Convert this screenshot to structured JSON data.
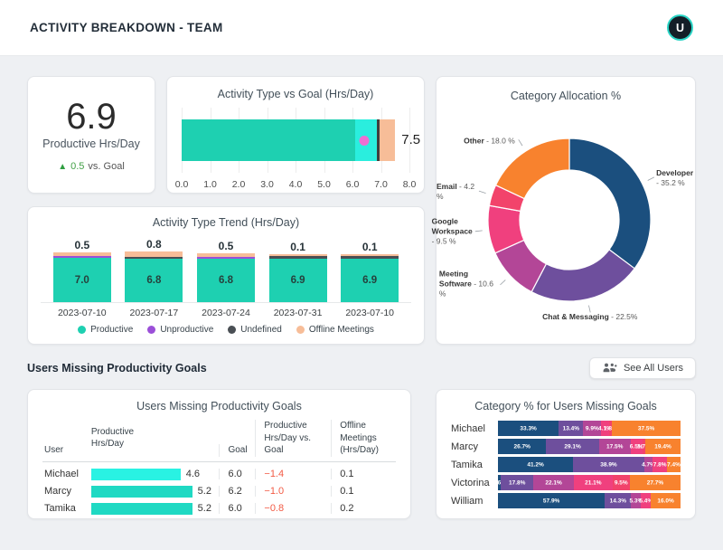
{
  "header": {
    "title": "ACTIVITY BREAKDOWN - TEAM",
    "avatar_initial": "U"
  },
  "kpi": {
    "value": "6.9",
    "label": "Productive Hrs/Day",
    "delta_icon": "up-triangle",
    "delta_value": "0.5",
    "delta_suffix": "vs. Goal"
  },
  "goal_chart": {
    "title": "Activity Type vs Goal (Hrs/Day)",
    "axis_max": 8,
    "ticks": [
      "0.0",
      "1.0",
      "2.0",
      "3.0",
      "4.0",
      "5.0",
      "6.0",
      "7.0",
      "8.0"
    ],
    "segments": [
      {
        "name": "productive",
        "from": 0,
        "to": 6.1,
        "color": "#1ed0b1"
      },
      {
        "name": "productive-extra",
        "from": 6.1,
        "to": 6.9,
        "color": "#2aeede"
      },
      {
        "name": "offline-meetings",
        "from": 6.9,
        "to": 7.5,
        "color": "#f7bd98"
      }
    ],
    "marker_value": 6.9,
    "marker_color": "#3f3f3f",
    "dot_value": 6.4,
    "dot_color": "#ee6fd2",
    "end_label": "7.5"
  },
  "donut": {
    "title": "Category Allocation %",
    "slices": [
      {
        "name": "Developer",
        "value": 35.2,
        "pct_label": "35.2 %",
        "color": "#1b4f7e"
      },
      {
        "name": "Chat & Messaging",
        "value": 22.5,
        "pct_label": "22.5%",
        "color": "#6e4f9d"
      },
      {
        "name": "Meeting Software",
        "value": 10.6,
        "pct_label": "10.6 %",
        "color": "#b34697"
      },
      {
        "name": "Google Workspace",
        "value": 9.5,
        "pct_label": "9.5 %",
        "color": "#f0407e"
      },
      {
        "name": "Email",
        "value": 4.2,
        "pct_label": "4.2 %",
        "color": "#f2436b"
      },
      {
        "name": "Other",
        "value": 18.0,
        "pct_label": "18.0 %",
        "color": "#f8822e"
      }
    ]
  },
  "trend": {
    "title": "Activity Type Trend (Hrs/Day)",
    "palette": {
      "productive": "#1ed0b1",
      "unproductive": "#9b4fd8",
      "undefined": "#4a4f54",
      "offline_meetings": "#f7bd98"
    },
    "bars": [
      {
        "date": "2023-07-10",
        "top_label": "0.5",
        "segments": [
          {
            "type": "productive",
            "value": 7.0,
            "label": "7.0"
          },
          {
            "type": "unproductive",
            "value": 0.1
          },
          {
            "type": "offline_meetings",
            "value": 0.5
          }
        ]
      },
      {
        "date": "2023-07-17",
        "top_label": "0.8",
        "segments": [
          {
            "type": "productive",
            "value": 6.8,
            "label": "6.8"
          },
          {
            "type": "undefined",
            "value": 0.1
          },
          {
            "type": "offline_meetings",
            "value": 0.8
          }
        ]
      },
      {
        "date": "2023-07-24",
        "top_label": "0.5",
        "segments": [
          {
            "type": "productive",
            "value": 6.8,
            "label": "6.8"
          },
          {
            "type": "unproductive",
            "value": 0.1
          },
          {
            "type": "offline_meetings",
            "value": 0.5
          }
        ]
      },
      {
        "date": "2023-07-31",
        "top_label": "0.1",
        "segments": [
          {
            "type": "productive",
            "value": 6.9,
            "label": "6.9"
          },
          {
            "type": "undefined",
            "value": 0.1
          },
          {
            "type": "offline_meetings",
            "value": 0.1
          }
        ]
      },
      {
        "date": "2023-07-10",
        "top_label": "0.1",
        "segments": [
          {
            "type": "productive",
            "value": 6.9,
            "label": "6.9"
          },
          {
            "type": "undefined",
            "value": 0.1
          },
          {
            "type": "offline_meetings",
            "value": 0.1
          }
        ]
      }
    ],
    "legend": [
      {
        "label": "Productive",
        "key": "productive"
      },
      {
        "label": "Unproductive",
        "key": "unproductive"
      },
      {
        "label": "Undefined",
        "key": "undefined"
      },
      {
        "label": "Offline Meetings",
        "key": "offline_meetings"
      }
    ]
  },
  "section": {
    "title": "Users Missing Productivity Goals",
    "button_label": "See All Users"
  },
  "table": {
    "title": "Users Missing Productivity Goals",
    "headers": {
      "user": "User",
      "prod1": "Productive",
      "prod2": "Hrs/Day",
      "goal": "Goal",
      "vs1": "Productive",
      "vs2": "Hrs/Day vs. Goal",
      "off1": "Offline Meetings",
      "off2": "(Hrs/Day)"
    },
    "rows": [
      {
        "user": "Michael",
        "hours": 4.6,
        "hours_label": "4.6",
        "bar_color": "#29f2e3",
        "goal": "6.0",
        "vs_goal": "−1.4",
        "offline": "0.1"
      },
      {
        "user": "Marcy",
        "hours": 5.2,
        "hours_label": "5.2",
        "bar_color": "#1fd9c3",
        "goal": "6.2",
        "vs_goal": "−1.0",
        "offline": "0.1"
      },
      {
        "user": "Tamika",
        "hours": 5.2,
        "hours_label": "5.2",
        "bar_color": "#1fd9c3",
        "goal": "6.0",
        "vs_goal": "−0.8",
        "offline": "0.2"
      }
    ]
  },
  "category_chart": {
    "title": "Category % for Users Missing Goals",
    "palette": {
      "developer": "#1b4f7e",
      "chat": "#6e4f9d",
      "meeting": "#b34697",
      "google": "#f0407e",
      "email": "#f2436b",
      "other": "#f8822e"
    },
    "rows": [
      {
        "user": "Michael",
        "segments": [
          {
            "key": "developer",
            "pct": 33.3,
            "label": "33.3%"
          },
          {
            "key": "chat",
            "pct": 13.4,
            "label": "13.4%"
          },
          {
            "key": "meeting",
            "pct": 9.9,
            "label": "9.9%"
          },
          {
            "key": "google",
            "pct": 4.1,
            "label": "4.1%"
          },
          {
            "key": "email",
            "pct": 1.8,
            "label": "1.8%"
          },
          {
            "key": "other",
            "pct": 37.5,
            "label": "37.5%"
          }
        ]
      },
      {
        "user": "Marcy",
        "segments": [
          {
            "key": "developer",
            "pct": 26.7,
            "label": "26.7%"
          },
          {
            "key": "chat",
            "pct": 29.1,
            "label": "29.1%"
          },
          {
            "key": "meeting",
            "pct": 17.5,
            "label": "17.5%"
          },
          {
            "key": "google",
            "pct": 6.5,
            "label": "6.5%"
          },
          {
            "key": "email",
            "pct": 1.7,
            "label": "1.7%"
          },
          {
            "key": "other",
            "pct": 19.4,
            "label": "19.4%"
          }
        ]
      },
      {
        "user": "Tamika",
        "segments": [
          {
            "key": "developer",
            "pct": 41.2,
            "label": "41.2%"
          },
          {
            "key": "chat",
            "pct": 38.9,
            "label": "38.9%"
          },
          {
            "key": "meeting",
            "pct": 4.7,
            "label": "4.7%"
          },
          {
            "key": "google",
            "pct": 7.8,
            "label": "7.8%"
          },
          {
            "key": "other",
            "pct": 7.4,
            "label": "7.4%"
          }
        ]
      },
      {
        "user": "Victorina",
        "segments": [
          {
            "key": "developer",
            "pct": 1.6,
            "label": "1.6%"
          },
          {
            "key": "chat",
            "pct": 17.8,
            "label": "17.8%"
          },
          {
            "key": "meeting",
            "pct": 22.1,
            "label": "22.1%"
          },
          {
            "key": "google",
            "pct": 21.1,
            "label": "21.1%"
          },
          {
            "key": "email",
            "pct": 9.5,
            "label": "9.5%"
          },
          {
            "key": "other",
            "pct": 27.7,
            "label": "27.7%"
          }
        ]
      },
      {
        "user": "William",
        "segments": [
          {
            "key": "developer",
            "pct": 57.9,
            "label": "57.9%"
          },
          {
            "key": "chat",
            "pct": 14.3,
            "label": "14.3%"
          },
          {
            "key": "meeting",
            "pct": 5.3,
            "label": "5.3%"
          },
          {
            "key": "google",
            "pct": 5.4,
            "label": "5.4%"
          },
          {
            "key": "other",
            "pct": 16.0,
            "label": "16.0%"
          }
        ]
      }
    ]
  }
}
